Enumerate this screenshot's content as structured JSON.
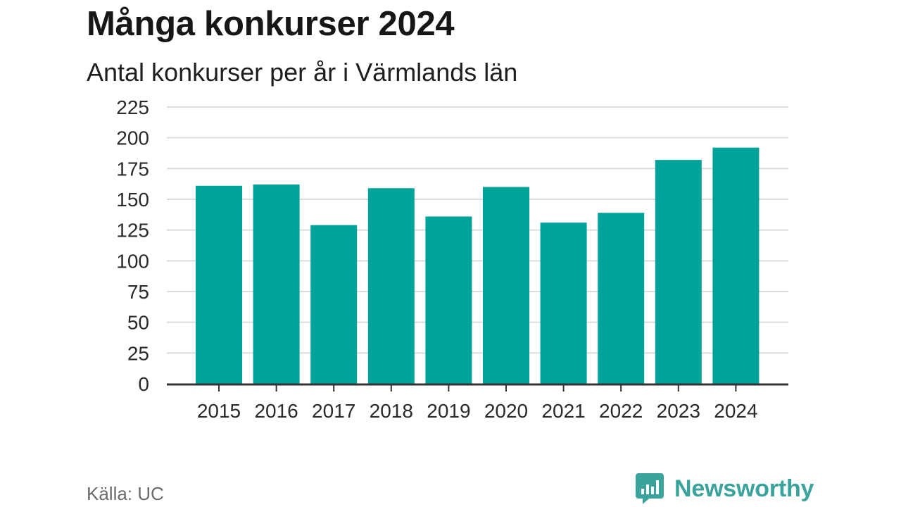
{
  "header": {
    "title": "Många konkurser 2024",
    "subtitle": "Antal konkurser per år i Värmlands län"
  },
  "footer": {
    "source": "Källa: UC",
    "brand": "Newsworthy"
  },
  "colors": {
    "bar": "#00a39a",
    "grid": "#dcdcdc",
    "axis": "#333333",
    "brand": "#3aa39b"
  },
  "chart_data": {
    "type": "bar",
    "title": "Många konkurser 2024",
    "subtitle": "Antal konkurser per år i Värmlands län",
    "categories": [
      "2015",
      "2016",
      "2017",
      "2018",
      "2019",
      "2020",
      "2021",
      "2022",
      "2023",
      "2024"
    ],
    "values": [
      161,
      162,
      129,
      159,
      136,
      160,
      131,
      139,
      182,
      192
    ],
    "ylim": [
      0,
      225
    ],
    "yticks": [
      0,
      25,
      50,
      75,
      100,
      125,
      150,
      175,
      200,
      225
    ],
    "grid": true,
    "legend": "none"
  }
}
